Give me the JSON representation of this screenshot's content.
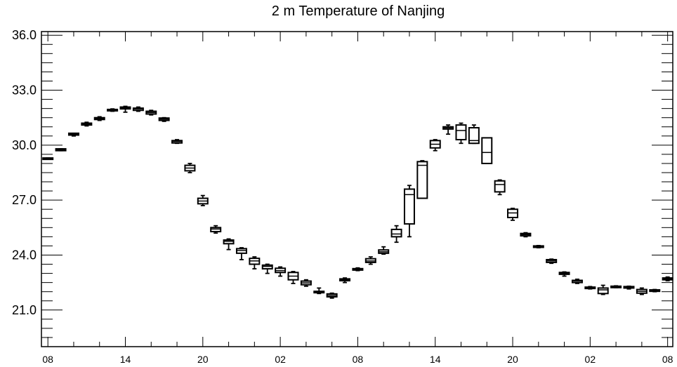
{
  "chart_data": {
    "type": "box",
    "title": "2 m Temperature of Nanjing",
    "xlabel": "",
    "ylabel": "",
    "ylim": [
      19.0,
      36.2
    ],
    "y_ticks": [
      21.0,
      24.0,
      27.0,
      30.0,
      33.0,
      36.0
    ],
    "y_tick_labels": [
      "21.0",
      "24.0",
      "27.0",
      "30.0",
      "33.0",
      "36.0"
    ],
    "x_tick_labels": [
      "08",
      "14",
      "20",
      "02",
      "08",
      "14",
      "20",
      "02",
      "08"
    ],
    "x_tick_hours": [
      0,
      6,
      12,
      18,
      24,
      30,
      36,
      42,
      48
    ],
    "x_hour_range": [
      -0.5,
      48.4
    ],
    "grid": false,
    "boxes": [
      {
        "hour": 0,
        "min": 29.25,
        "q1": 29.25,
        "median": 29.28,
        "q3": 29.3,
        "max": 29.3
      },
      {
        "hour": 1,
        "min": 29.7,
        "q1": 29.7,
        "median": 29.75,
        "q3": 29.8,
        "max": 29.8
      },
      {
        "hour": 2,
        "min": 30.5,
        "q1": 30.55,
        "median": 30.6,
        "q3": 30.65,
        "max": 30.65
      },
      {
        "hour": 3,
        "min": 31.05,
        "q1": 31.1,
        "median": 31.15,
        "q3": 31.2,
        "max": 31.25
      },
      {
        "hour": 4,
        "min": 31.35,
        "q1": 31.4,
        "median": 31.45,
        "q3": 31.5,
        "max": 31.55
      },
      {
        "hour": 5,
        "min": 31.85,
        "q1": 31.88,
        "median": 31.92,
        "q3": 31.95,
        "max": 31.98
      },
      {
        "hour": 6,
        "min": 31.8,
        "q1": 31.98,
        "median": 32.03,
        "q3": 32.08,
        "max": 32.12
      },
      {
        "hour": 7,
        "min": 31.85,
        "q1": 31.9,
        "median": 31.98,
        "q3": 32.02,
        "max": 32.08
      },
      {
        "hour": 8,
        "min": 31.65,
        "q1": 31.7,
        "median": 31.78,
        "q3": 31.85,
        "max": 31.9
      },
      {
        "hour": 9,
        "min": 31.3,
        "q1": 31.35,
        "median": 31.42,
        "q3": 31.48,
        "max": 31.5
      },
      {
        "hour": 10,
        "min": 30.1,
        "q1": 30.12,
        "median": 30.2,
        "q3": 30.25,
        "max": 30.3
      },
      {
        "hour": 11,
        "min": 28.5,
        "q1": 28.6,
        "median": 28.75,
        "q3": 28.9,
        "max": 29.0
      },
      {
        "hour": 12,
        "min": 26.7,
        "q1": 26.8,
        "median": 26.95,
        "q3": 27.1,
        "max": 27.25
      },
      {
        "hour": 13,
        "min": 25.2,
        "q1": 25.28,
        "median": 25.42,
        "q3": 25.5,
        "max": 25.6
      },
      {
        "hour": 14,
        "min": 24.3,
        "q1": 24.62,
        "median": 24.75,
        "q3": 24.82,
        "max": 24.88
      },
      {
        "hour": 15,
        "min": 23.75,
        "q1": 24.1,
        "median": 24.25,
        "q3": 24.35,
        "max": 24.4
      },
      {
        "hour": 16,
        "min": 23.25,
        "q1": 23.5,
        "median": 23.68,
        "q3": 23.82,
        "max": 23.9
      },
      {
        "hour": 17,
        "min": 23.0,
        "q1": 23.25,
        "median": 23.38,
        "q3": 23.45,
        "max": 23.5
      },
      {
        "hour": 18,
        "min": 22.85,
        "q1": 23.05,
        "median": 23.15,
        "q3": 23.28,
        "max": 23.35
      },
      {
        "hour": 19,
        "min": 22.45,
        "q1": 22.65,
        "median": 22.85,
        "q3": 23.05,
        "max": 23.1
      },
      {
        "hour": 20,
        "min": 22.3,
        "q1": 22.38,
        "median": 22.48,
        "q3": 22.58,
        "max": 22.65
      },
      {
        "hour": 21,
        "min": 21.9,
        "q1": 21.95,
        "median": 21.98,
        "q3": 22.02,
        "max": 22.2
      },
      {
        "hour": 22,
        "min": 21.65,
        "q1": 21.72,
        "median": 21.8,
        "q3": 21.88,
        "max": 21.92
      },
      {
        "hour": 23,
        "min": 22.5,
        "q1": 22.6,
        "median": 22.65,
        "q3": 22.7,
        "max": 22.75
      },
      {
        "hour": 24,
        "min": 23.15,
        "q1": 23.18,
        "median": 23.22,
        "q3": 23.26,
        "max": 23.3
      },
      {
        "hour": 25,
        "min": 23.5,
        "q1": 23.6,
        "median": 23.68,
        "q3": 23.8,
        "max": 23.9
      },
      {
        "hour": 26,
        "min": 24.05,
        "q1": 24.1,
        "median": 24.18,
        "q3": 24.28,
        "max": 24.45
      },
      {
        "hour": 27,
        "min": 24.7,
        "q1": 25.0,
        "median": 25.15,
        "q3": 25.4,
        "max": 25.6
      },
      {
        "hour": 28,
        "min": 25.0,
        "q1": 25.7,
        "median": 27.3,
        "q3": 27.6,
        "max": 27.8
      },
      {
        "hour": 29,
        "min": 27.1,
        "q1": 27.1,
        "median": 28.9,
        "q3": 29.1,
        "max": 29.15
      },
      {
        "hour": 30,
        "min": 29.7,
        "q1": 29.85,
        "median": 30.05,
        "q3": 30.25,
        "max": 30.3
      },
      {
        "hour": 31,
        "min": 30.6,
        "q1": 30.88,
        "median": 30.95,
        "q3": 31.0,
        "max": 31.1
      },
      {
        "hour": 32,
        "min": 30.1,
        "q1": 30.3,
        "median": 30.8,
        "q3": 31.1,
        "max": 31.2
      },
      {
        "hour": 33,
        "min": 30.1,
        "q1": 30.1,
        "median": 30.25,
        "q3": 30.95,
        "max": 31.1
      },
      {
        "hour": 34,
        "min": 29.0,
        "q1": 29.0,
        "median": 29.6,
        "q3": 30.4,
        "max": 30.4
      },
      {
        "hour": 35,
        "min": 27.3,
        "q1": 27.45,
        "median": 27.85,
        "q3": 28.05,
        "max": 28.1
      },
      {
        "hour": 36,
        "min": 25.9,
        "q1": 26.05,
        "median": 26.3,
        "q3": 26.5,
        "max": 26.55
      },
      {
        "hour": 37,
        "min": 25.0,
        "q1": 25.05,
        "median": 25.12,
        "q3": 25.18,
        "max": 25.22
      },
      {
        "hour": 38,
        "min": 24.4,
        "q1": 24.42,
        "median": 24.46,
        "q3": 24.5,
        "max": 24.52
      },
      {
        "hour": 39,
        "min": 23.55,
        "q1": 23.6,
        "median": 23.68,
        "q3": 23.75,
        "max": 23.78
      },
      {
        "hour": 40,
        "min": 22.85,
        "q1": 22.95,
        "median": 23.0,
        "q3": 23.05,
        "max": 23.08
      },
      {
        "hour": 41,
        "min": 22.45,
        "q1": 22.5,
        "median": 22.58,
        "q3": 22.62,
        "max": 22.68
      },
      {
        "hour": 42,
        "min": 22.15,
        "q1": 22.18,
        "median": 22.22,
        "q3": 22.25,
        "max": 22.28
      },
      {
        "hour": 43,
        "min": 21.85,
        "q1": 21.9,
        "median": 22.1,
        "q3": 22.2,
        "max": 22.35
      },
      {
        "hour": 44,
        "min": 22.22,
        "q1": 22.24,
        "median": 22.28,
        "q3": 22.3,
        "max": 22.32
      },
      {
        "hour": 45,
        "min": 22.15,
        "q1": 22.2,
        "median": 22.24,
        "q3": 22.28,
        "max": 22.3
      },
      {
        "hour": 46,
        "min": 21.85,
        "q1": 21.92,
        "median": 22.02,
        "q3": 22.12,
        "max": 22.2
      },
      {
        "hour": 47,
        "min": 22.0,
        "q1": 22.02,
        "median": 22.06,
        "q3": 22.1,
        "max": 22.12
      },
      {
        "hour": 48,
        "min": 22.6,
        "q1": 22.65,
        "median": 22.7,
        "q3": 22.75,
        "max": 22.8
      }
    ]
  }
}
